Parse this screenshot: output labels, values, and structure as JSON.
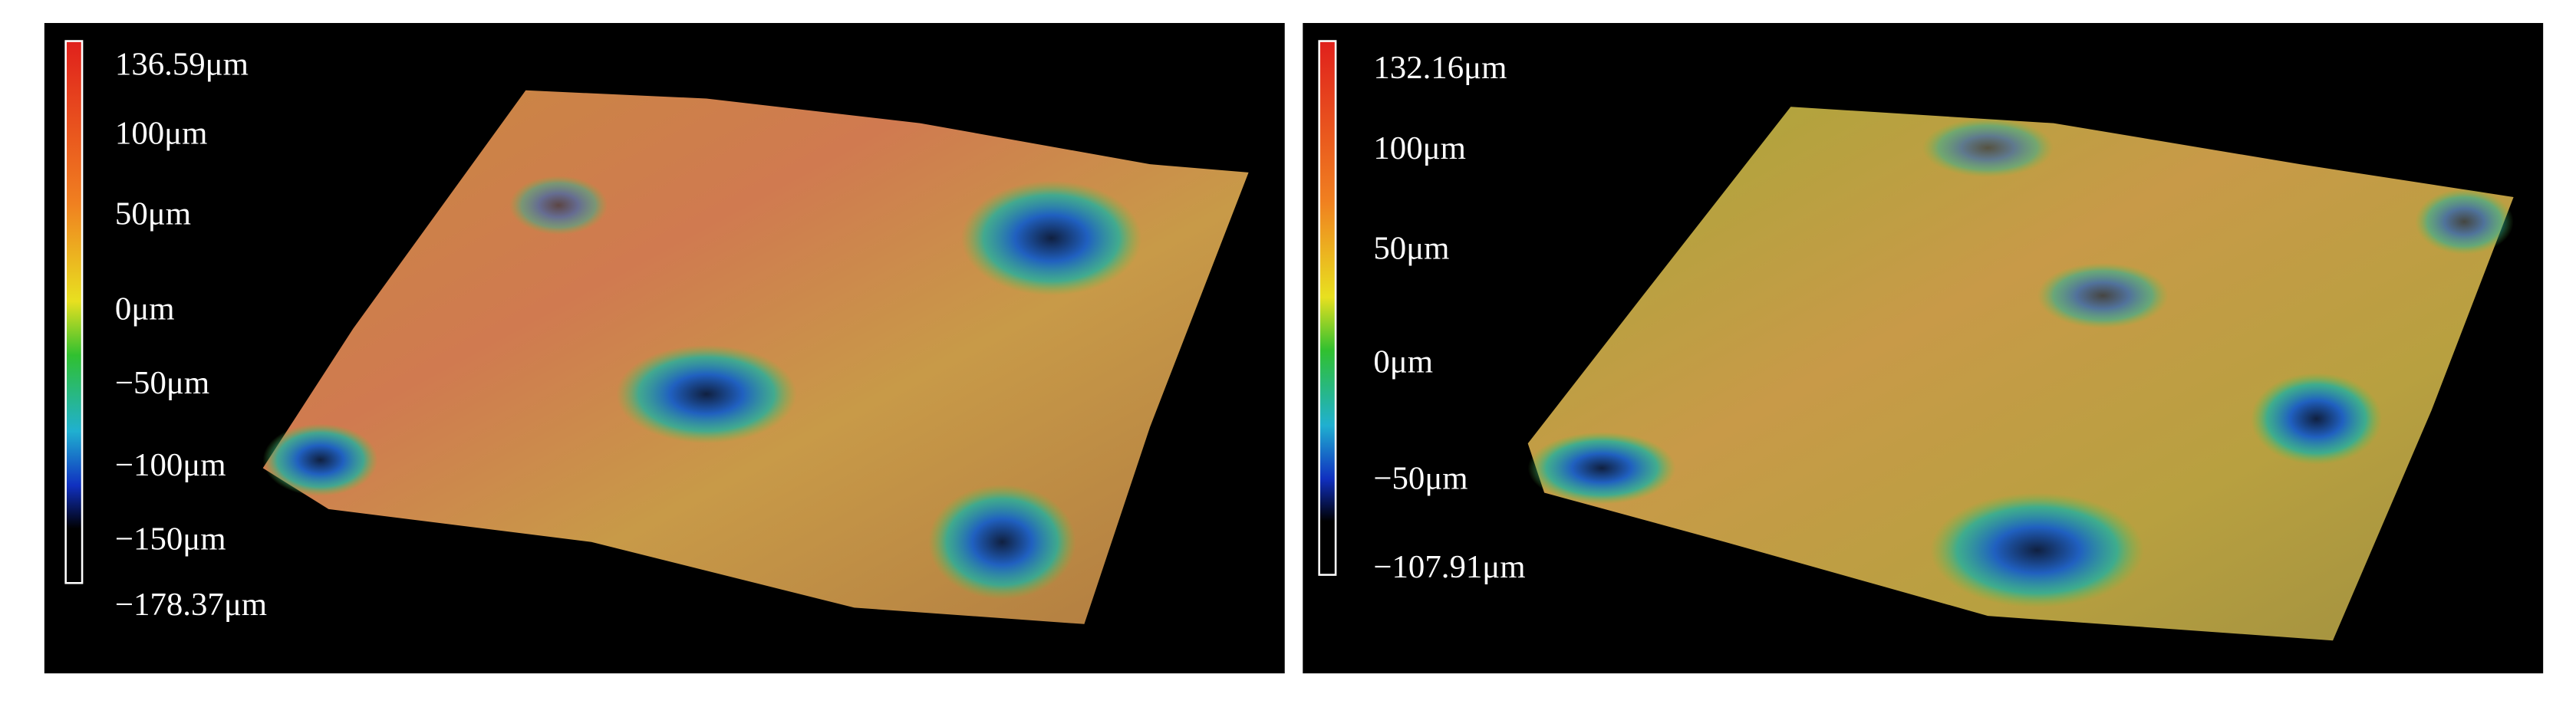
{
  "panels": [
    {
      "scale_labels": [
        "136.59μm",
        "100μm",
        "50μm",
        "0μm",
        "−50μm",
        "−100μm",
        "−150μm",
        "−178.37μm"
      ]
    },
    {
      "scale_labels": [
        "132.16μm",
        "100μm",
        "50μm",
        "0μm",
        "−50μm",
        "−107.91μm"
      ]
    }
  ]
}
